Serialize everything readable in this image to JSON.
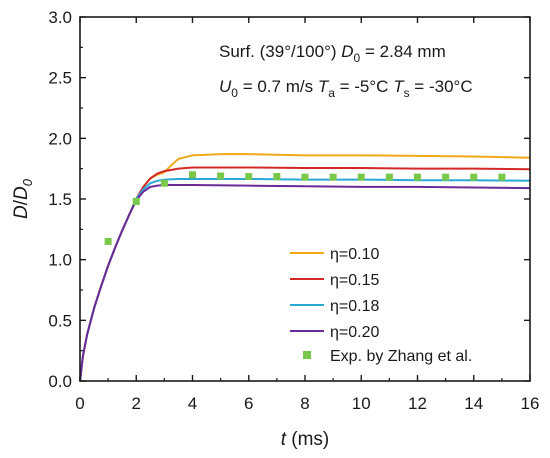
{
  "chart_data": {
    "type": "line",
    "xlabel": {
      "main": "t",
      "unit": " (ms)"
    },
    "ylabel": {
      "var": "D",
      "sep": "/",
      "var2": "D",
      "sub": "0"
    },
    "xlim": [
      0,
      16
    ],
    "ylim": [
      0,
      3.0
    ],
    "x_ticks": [
      0,
      2,
      4,
      6,
      8,
      10,
      12,
      14,
      16
    ],
    "y_ticks": [
      "0.0",
      "0.5",
      "1.0",
      "1.5",
      "2.0",
      "2.5",
      "3.0"
    ],
    "annotation": {
      "line1": {
        "prefix": "Surf. (39°/100°) ",
        "var": "D",
        "sub": "0",
        "suffix": " = 2.84 mm"
      },
      "line2": {
        "u_var": "U",
        "u_sub": "0",
        "u_val": " = 0.7 m/s ",
        "ta_var": "T",
        "ta_sub": "a",
        "ta_val": " = -5°C ",
        "ts_var": "T",
        "ts_sub": "s",
        "ts_val": " = -30°C"
      }
    },
    "series": [
      {
        "name": "η=0.10",
        "color": "#f0a818",
        "points": [
          [
            0,
            0
          ],
          [
            0.1,
            0.2
          ],
          [
            0.25,
            0.38
          ],
          [
            0.5,
            0.6
          ],
          [
            0.75,
            0.78
          ],
          [
            1,
            0.95
          ],
          [
            1.25,
            1.1
          ],
          [
            1.5,
            1.24
          ],
          [
            1.75,
            1.37
          ],
          [
            2,
            1.5
          ],
          [
            2.25,
            1.6
          ],
          [
            2.5,
            1.67
          ],
          [
            2.75,
            1.7
          ],
          [
            3,
            1.72
          ],
          [
            3.25,
            1.78
          ],
          [
            3.5,
            1.83
          ],
          [
            4,
            1.86
          ],
          [
            5,
            1.87
          ],
          [
            6,
            1.87
          ],
          [
            8,
            1.86
          ],
          [
            10,
            1.86
          ],
          [
            12,
            1.855
          ],
          [
            14,
            1.85
          ],
          [
            16,
            1.84
          ]
        ]
      },
      {
        "name": "η=0.15",
        "color": "#d42828",
        "points": [
          [
            0,
            0
          ],
          [
            0.1,
            0.2
          ],
          [
            0.25,
            0.38
          ],
          [
            0.5,
            0.6
          ],
          [
            0.75,
            0.78
          ],
          [
            1,
            0.95
          ],
          [
            1.25,
            1.1
          ],
          [
            1.5,
            1.24
          ],
          [
            1.75,
            1.37
          ],
          [
            2,
            1.5
          ],
          [
            2.25,
            1.6
          ],
          [
            2.5,
            1.67
          ],
          [
            2.75,
            1.71
          ],
          [
            3,
            1.73
          ],
          [
            3.5,
            1.75
          ],
          [
            4,
            1.76
          ],
          [
            6,
            1.76
          ],
          [
            8,
            1.755
          ],
          [
            10,
            1.755
          ],
          [
            12,
            1.75
          ],
          [
            14,
            1.75
          ],
          [
            16,
            1.745
          ]
        ]
      },
      {
        "name": "η=0.18",
        "color": "#2aa8d8",
        "points": [
          [
            0,
            0
          ],
          [
            0.1,
            0.2
          ],
          [
            0.25,
            0.38
          ],
          [
            0.5,
            0.6
          ],
          [
            0.75,
            0.78
          ],
          [
            1,
            0.95
          ],
          [
            1.25,
            1.1
          ],
          [
            1.5,
            1.24
          ],
          [
            1.75,
            1.37
          ],
          [
            2,
            1.5
          ],
          [
            2.25,
            1.58
          ],
          [
            2.5,
            1.63
          ],
          [
            2.75,
            1.65
          ],
          [
            3,
            1.66
          ],
          [
            3.5,
            1.665
          ],
          [
            4,
            1.665
          ],
          [
            6,
            1.665
          ],
          [
            8,
            1.66
          ],
          [
            10,
            1.66
          ],
          [
            12,
            1.655
          ],
          [
            14,
            1.655
          ],
          [
            16,
            1.65
          ]
        ]
      },
      {
        "name": "η=0.20",
        "color": "#6a2a9a",
        "points": [
          [
            0,
            0
          ],
          [
            0.1,
            0.2
          ],
          [
            0.25,
            0.38
          ],
          [
            0.5,
            0.6
          ],
          [
            0.75,
            0.78
          ],
          [
            1,
            0.95
          ],
          [
            1.25,
            1.1
          ],
          [
            1.5,
            1.24
          ],
          [
            1.75,
            1.37
          ],
          [
            2,
            1.49
          ],
          [
            2.25,
            1.56
          ],
          [
            2.5,
            1.6
          ],
          [
            2.75,
            1.61
          ],
          [
            3,
            1.615
          ],
          [
            4,
            1.615
          ],
          [
            6,
            1.61
          ],
          [
            8,
            1.605
          ],
          [
            10,
            1.6
          ],
          [
            12,
            1.6
          ],
          [
            14,
            1.595
          ],
          [
            16,
            1.59
          ]
        ]
      }
    ],
    "scatter": {
      "name": "Exp. by Zhang et al.",
      "color": "#7ac84a",
      "points": [
        [
          1,
          1.15
        ],
        [
          2,
          1.48
        ],
        [
          3,
          1.63
        ],
        [
          4,
          1.7
        ],
        [
          5,
          1.69
        ],
        [
          6,
          1.685
        ],
        [
          7,
          1.685
        ],
        [
          8,
          1.68
        ],
        [
          9,
          1.68
        ],
        [
          10,
          1.68
        ],
        [
          11,
          1.68
        ],
        [
          12,
          1.68
        ],
        [
          13,
          1.68
        ],
        [
          14,
          1.68
        ],
        [
          15,
          1.68
        ]
      ]
    },
    "legend_position": "bottom-right"
  }
}
